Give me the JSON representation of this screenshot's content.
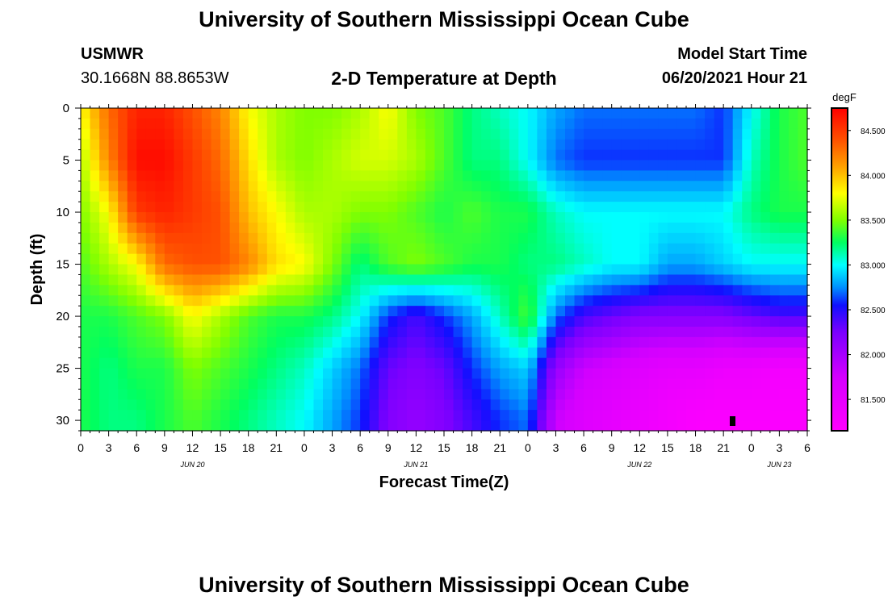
{
  "page": {
    "title_top": "University of Southern Mississippi Ocean Cube",
    "title_bottom": "University of Southern Mississippi Ocean Cube",
    "station": "USMWR",
    "coords": "30.1668N  88.8653W",
    "model_start_label": "Model Start Time",
    "model_start_value": "06/20/2021 Hour 21"
  },
  "colorbar": {
    "unit": "degF",
    "tick_values": [
      84.5,
      84.0,
      83.5,
      83.0,
      82.5,
      82.0,
      81.5
    ],
    "tick_labels": [
      "84.500",
      "84.000",
      "83.500",
      "83.000",
      "82.500",
      "82.000",
      "81.500"
    ],
    "range": [
      81.15,
      84.75
    ],
    "stops": [
      {
        "v": 81.15,
        "c": "#ff00ff"
      },
      {
        "v": 81.75,
        "c": "#d400ff"
      },
      {
        "v": 82.25,
        "c": "#7a00ff"
      },
      {
        "v": 82.55,
        "c": "#1010ff"
      },
      {
        "v": 82.75,
        "c": "#0090ff"
      },
      {
        "v": 83.0,
        "c": "#00ffff"
      },
      {
        "v": 83.25,
        "c": "#00ff60"
      },
      {
        "v": 83.5,
        "c": "#80ff00"
      },
      {
        "v": 83.8,
        "c": "#ffff00"
      },
      {
        "v": 84.1,
        "c": "#ffa000"
      },
      {
        "v": 84.4,
        "c": "#ff5000"
      },
      {
        "v": 84.75,
        "c": "#ff0000"
      }
    ]
  },
  "chart_data": {
    "type": "heatmap",
    "title": "2-D Temperature at Depth",
    "xlabel": "Forecast Time(Z)",
    "ylabel": "Depth (ft)",
    "units": "degF",
    "x_hours_from_jun20_00z": [
      0,
      3,
      6,
      9,
      12,
      15,
      18,
      21,
      24,
      27,
      30,
      33,
      36,
      39,
      42,
      45,
      48,
      51,
      54,
      57,
      60,
      63,
      66,
      69,
      72,
      75,
      78
    ],
    "xlim_hours": [
      0,
      78
    ],
    "x_tick_labels": [
      "0",
      "3",
      "6",
      "9",
      "12",
      "15",
      "18",
      "21",
      "0",
      "3",
      "6",
      "9",
      "12",
      "15",
      "18",
      "21",
      "0",
      "3",
      "6",
      "9",
      "12",
      "15",
      "18",
      "21",
      "0",
      "3",
      "6"
    ],
    "date_labels": [
      {
        "label": "JUN 20",
        "hour": 12
      },
      {
        "label": "JUN 21",
        "hour": 36
      },
      {
        "label": "JUN 22",
        "hour": 60
      },
      {
        "label": "JUN 23",
        "hour": 75
      }
    ],
    "depth_ft": [
      0,
      5,
      10,
      15,
      20,
      25,
      30
    ],
    "ylim": [
      0,
      31
    ],
    "y_ticks": [
      0,
      5,
      10,
      15,
      20,
      25,
      30
    ],
    "temperature_degF": [
      [
        83.8,
        84.3,
        84.6,
        84.6,
        84.4,
        84.2,
        83.8,
        83.6,
        83.5,
        83.5,
        83.6,
        83.8,
        83.5,
        83.4,
        83.2,
        83.1,
        83.0,
        82.8,
        82.7,
        82.7,
        82.7,
        82.7,
        82.7,
        82.6,
        83.0,
        83.3,
        83.4
      ],
      [
        83.6,
        84.2,
        84.7,
        84.7,
        84.5,
        84.3,
        83.9,
        83.6,
        83.5,
        83.6,
        83.7,
        83.7,
        83.6,
        83.4,
        83.2,
        83.2,
        83.0,
        82.7,
        82.6,
        82.6,
        82.6,
        82.6,
        82.6,
        82.6,
        83.1,
        83.3,
        83.4
      ],
      [
        83.5,
        83.8,
        84.5,
        84.6,
        84.5,
        84.4,
        84.0,
        83.8,
        83.6,
        83.6,
        83.5,
        83.5,
        83.4,
        83.3,
        83.4,
        83.3,
        83.3,
        83.1,
        83.0,
        83.0,
        83.0,
        83.0,
        83.0,
        83.0,
        83.2,
        83.3,
        83.3
      ],
      [
        83.4,
        83.6,
        83.8,
        84.3,
        84.4,
        84.4,
        84.2,
        83.9,
        83.8,
        83.5,
        83.2,
        83.4,
        83.5,
        83.4,
        83.3,
        83.3,
        83.2,
        83.2,
        83.1,
        83.0,
        83.0,
        82.8,
        82.8,
        82.9,
        83.0,
        83.0,
        83.0
      ],
      [
        83.3,
        83.3,
        83.4,
        83.5,
        83.8,
        83.6,
        83.4,
        83.3,
        83.3,
        83.2,
        83.0,
        82.6,
        82.4,
        82.6,
        82.8,
        83.1,
        83.4,
        82.7,
        82.4,
        82.3,
        82.2,
        82.2,
        82.2,
        82.2,
        82.3,
        82.4,
        82.4
      ],
      [
        83.3,
        83.2,
        83.3,
        83.3,
        83.5,
        83.4,
        83.3,
        83.2,
        83.1,
        82.9,
        82.7,
        82.3,
        82.2,
        82.3,
        82.6,
        82.8,
        82.9,
        82.1,
        81.8,
        81.7,
        81.6,
        81.5,
        81.5,
        81.4,
        81.4,
        81.3,
        81.3
      ],
      [
        83.3,
        83.2,
        83.2,
        83.3,
        83.4,
        83.3,
        83.2,
        83.1,
        83.0,
        82.8,
        82.6,
        82.2,
        82.1,
        82.2,
        82.4,
        82.6,
        82.7,
        81.8,
        81.6,
        81.5,
        81.4,
        81.3,
        81.2,
        81.2,
        81.2,
        81.2,
        81.2
      ]
    ]
  }
}
